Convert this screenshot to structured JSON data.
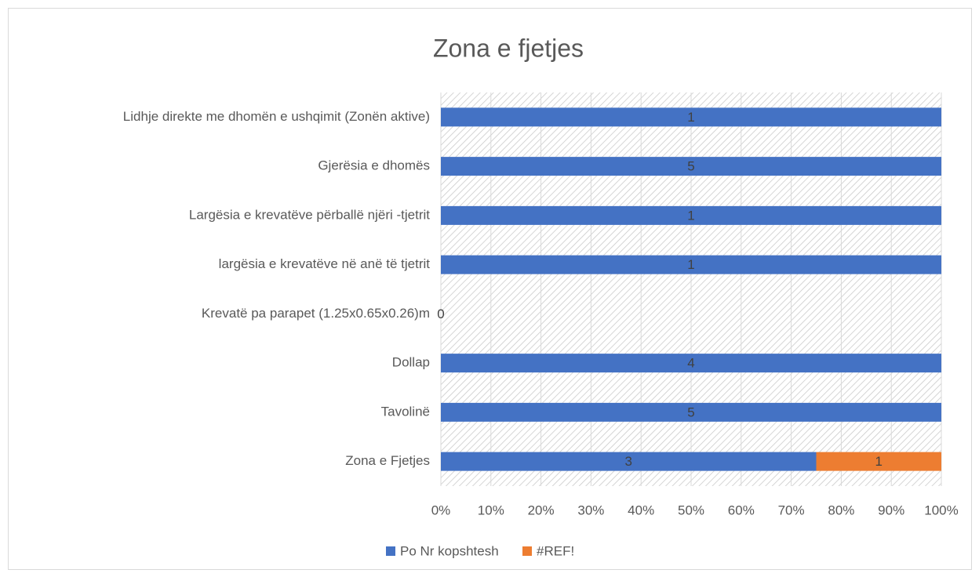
{
  "chart_data": {
    "type": "bar",
    "orientation": "horizontal",
    "stacking": "percent",
    "title": "Zona e fjetjes",
    "categories": [
      "Lidhje direkte me dhomën e ushqimit (Zonën aktive)",
      "Gjerësia e dhomës",
      "Largësia e krevatëve përballë njëri -tjetrit",
      "largësia e krevatëve në anë të tjetrit",
      "Krevatë pa parapet (1.25x0.65x0.26)m",
      "Dollap",
      "Tavolinë",
      "Zona e Fjetjes"
    ],
    "series": [
      {
        "name": "Po Nr kopshtesh",
        "color": "#4472c4",
        "values": [
          1,
          5,
          1,
          1,
          0,
          4,
          5,
          3
        ]
      },
      {
        "name": "#REF!",
        "color": "#ed7d31",
        "values": [
          null,
          null,
          null,
          null,
          null,
          null,
          null,
          1
        ]
      }
    ],
    "xlim": [
      0,
      100
    ],
    "xticks": [
      {
        "value": 0,
        "label": "0%"
      },
      {
        "value": 10,
        "label": "10%"
      },
      {
        "value": 20,
        "label": "20%"
      },
      {
        "value": 30,
        "label": "30%"
      },
      {
        "value": 40,
        "label": "40%"
      },
      {
        "value": 50,
        "label": "50%"
      },
      {
        "value": 60,
        "label": "60%"
      },
      {
        "value": 70,
        "label": "70%"
      },
      {
        "value": 80,
        "label": "80%"
      },
      {
        "value": 90,
        "label": "90%"
      },
      {
        "value": 100,
        "label": "100%"
      }
    ],
    "grid": true,
    "legend": "bottom"
  }
}
